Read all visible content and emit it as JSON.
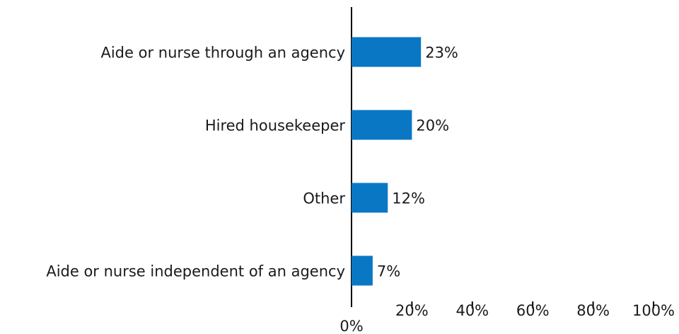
{
  "chart_data": {
    "type": "barh",
    "categories": [
      "Aide or nurse through an agency",
      "Hired housekeeper",
      "Other",
      "Aide or nurse independent of an agency"
    ],
    "values": [
      23,
      20,
      12,
      7
    ],
    "value_labels": [
      "23%",
      "20%",
      "12%",
      "7%"
    ],
    "color": "#0a77c4",
    "xlim": [
      0,
      100
    ],
    "xticks": [
      {
        "value": 0,
        "label": "0%"
      },
      {
        "value": 20,
        "label": "20%"
      },
      {
        "value": 40,
        "label": "40%"
      },
      {
        "value": 60,
        "label": "60%"
      },
      {
        "value": 80,
        "label": "80%"
      },
      {
        "value": 100,
        "label": "100%"
      }
    ],
    "grid": false
  }
}
